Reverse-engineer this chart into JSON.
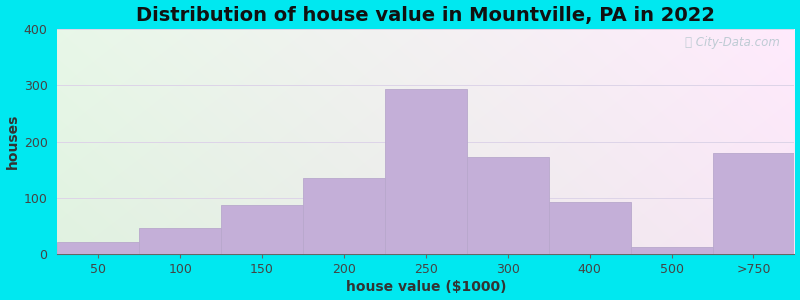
{
  "title": "Distribution of house value in Mountville, PA in 2022",
  "xlabel": "house value ($1000)",
  "ylabel": "houses",
  "bar_labels": [
    "50",
    "100",
    "150",
    "200",
    "250",
    "300",
    "400",
    "500",
    ">750"
  ],
  "bar_values": [
    22,
    47,
    87,
    135,
    293,
    173,
    92,
    12,
    180
  ],
  "bar_color": "#c4afd8",
  "bar_edge_color": "#b8a8cc",
  "ylim": [
    0,
    400
  ],
  "yticks": [
    0,
    100,
    200,
    300,
    400
  ],
  "background_outer": "#00e8f0",
  "grid_color": "#ddd4e8",
  "title_fontsize": 14,
  "axis_label_fontsize": 10,
  "tick_fontsize": 9,
  "watermark_text": "City-Data.com",
  "watermark_color": "#b8c8d0",
  "fig_width": 8.0,
  "fig_height": 3.0,
  "fig_dpi": 100
}
